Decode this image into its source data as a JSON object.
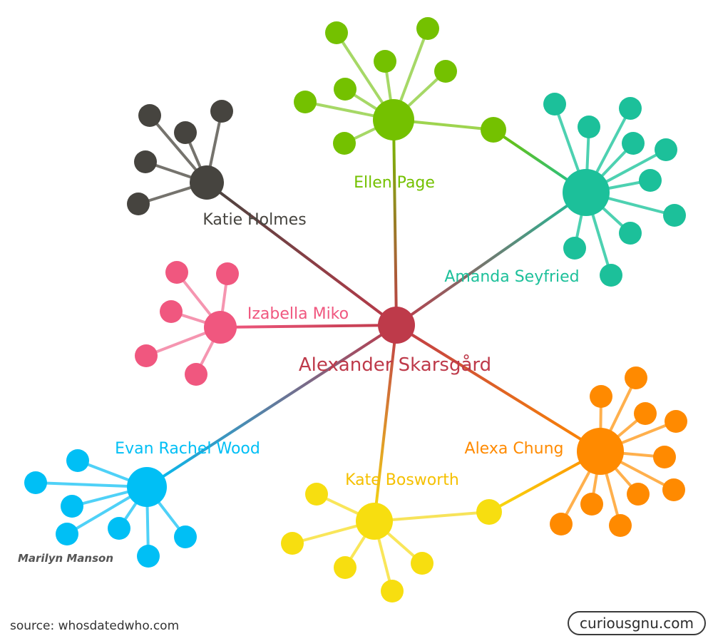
{
  "center": {
    "name": "Alexander Skarsgård",
    "color": "#be3a4a"
  },
  "clusters": [
    {
      "id": "katie",
      "name": "Katie Holmes",
      "color": "#46443f"
    },
    {
      "id": "ellen",
      "name": "Ellen Page",
      "color": "#74c100"
    },
    {
      "id": "amanda",
      "name": "Amanda Seyfried",
      "color": "#1cc09a"
    },
    {
      "id": "izabella",
      "name": "Izabella Miko",
      "color": "#f0577f"
    },
    {
      "id": "evan",
      "name": "Evan Rachel Wood",
      "color": "#00bff5"
    },
    {
      "id": "kate",
      "name": "Kate Bosworth",
      "color": "#f7de10"
    },
    {
      "id": "alexa",
      "name": "Alexa Chung",
      "color": "#ff8a00"
    }
  ],
  "extra_label": "Marilyn Manson",
  "source": "source: whosdatedwho.com",
  "brand": "curiousgnu.com"
}
